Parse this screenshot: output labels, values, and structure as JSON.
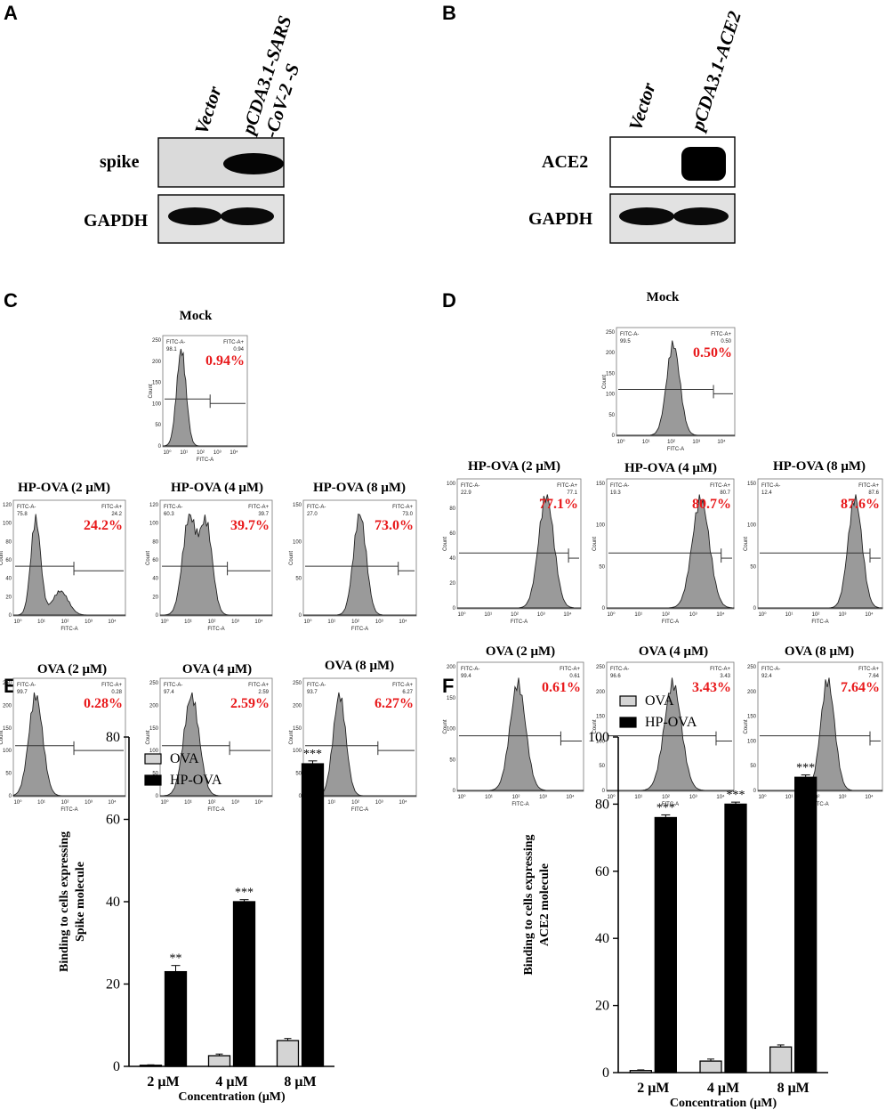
{
  "panel_labels": [
    "A",
    "B",
    "C",
    "D",
    "E",
    "F"
  ],
  "blot_A": {
    "lanes": [
      "Vector",
      "pCDA3.1-SARS",
      "-CoV-2 -S"
    ],
    "rows": [
      {
        "label": "spike",
        "band_intensity": [
          0,
          1
        ]
      },
      {
        "label": "GAPDH",
        "band_intensity": [
          1,
          1
        ]
      }
    ]
  },
  "blot_B": {
    "lanes": [
      "Vector",
      "pCDA3.1-ACE2"
    ],
    "rows": [
      {
        "label": "ACE2",
        "band_intensity": [
          0,
          1
        ]
      },
      {
        "label": "GAPDH",
        "band_intensity": [
          1,
          1
        ]
      }
    ]
  },
  "flow_C": [
    {
      "title": "Mock",
      "neg_label": "FITC-A-",
      "pos_label": "FITC-A+",
      "neg_value": "98.1",
      "pos_value": "0.94",
      "percent": "0.94%",
      "peak_log": 1.1,
      "ymax": 250,
      "yticks": [
        0,
        50,
        100,
        150,
        200,
        250
      ]
    },
    {
      "title": "HP-OVA (2 μM)",
      "neg_label": "FITC-A-",
      "pos_label": "FITC-A+",
      "neg_value": "75.8",
      "pos_value": "24.2",
      "percent": "24.2%",
      "peak_log": 1.0,
      "ymax": 120,
      "yticks": [
        0,
        20,
        40,
        60,
        80,
        100,
        120
      ]
    },
    {
      "title": "HP-OVA (4 μM)",
      "neg_label": "FITC-A-",
      "pos_label": "FITC-A+",
      "neg_value": "60.3",
      "pos_value": "39.7",
      "percent": "39.7%",
      "peak_log": 1.3,
      "ymax": 120,
      "yticks": [
        0,
        20,
        40,
        60,
        80,
        100,
        120
      ]
    },
    {
      "title": "HP-OVA (8 μM)",
      "neg_label": "FITC-A-",
      "pos_label": "FITC-A+",
      "neg_value": "27.0",
      "pos_value": "73.0",
      "percent": "73.0%",
      "peak_log": 2.5,
      "ymax": 150,
      "yticks": [
        0,
        50,
        100,
        150
      ]
    },
    {
      "title": "OVA (2 μM)",
      "neg_label": "FITC-A-",
      "pos_label": "FITC-A+",
      "neg_value": "99.7",
      "pos_value": "0.28",
      "percent": "0.28%",
      "peak_log": 1.0,
      "ymax": 250,
      "yticks": [
        0,
        50,
        100,
        150,
        200,
        250
      ]
    },
    {
      "title": "OVA (4 μM)",
      "neg_label": "FITC-A-",
      "pos_label": "FITC-A+",
      "neg_value": "97.4",
      "pos_value": "2.59",
      "percent": "2.59%",
      "peak_log": 1.4,
      "ymax": 250,
      "yticks": [
        0,
        50,
        100,
        150,
        200,
        250
      ]
    },
    {
      "title": "OVA (8 μM)",
      "neg_label": "FITC-A-",
      "pos_label": "FITC-A+",
      "neg_value": "93.7",
      "pos_value": "6.27",
      "percent": "6.27%",
      "peak_log": 1.6,
      "ymax": 250,
      "yticks": [
        0,
        50,
        100,
        150,
        200,
        250
      ]
    }
  ],
  "flow_D": [
    {
      "title": "Mock",
      "neg_label": "FITC-A-",
      "pos_label": "FITC-A+",
      "neg_value": "99.5",
      "pos_value": "0.50",
      "percent": "0.50%",
      "peak_log": 2.4,
      "ymax": 250,
      "yticks": [
        0,
        50,
        100,
        150,
        200,
        250
      ]
    },
    {
      "title": "HP-OVA (2 μM)",
      "neg_label": "FITC-A-",
      "pos_label": "FITC-A+",
      "neg_value": "22.9",
      "pos_value": "77.1",
      "percent": "77.1%",
      "peak_log": 3.6,
      "ymax": 100,
      "yticks": [
        0,
        20,
        40,
        60,
        80,
        100
      ]
    },
    {
      "title": "HP-OVA (4 μM)",
      "neg_label": "FITC-A-",
      "pos_label": "FITC-A+",
      "neg_value": "19.3",
      "pos_value": "80.7",
      "percent": "80.7%",
      "peak_log": 3.7,
      "ymax": 150,
      "yticks": [
        0,
        50,
        100,
        150
      ]
    },
    {
      "title": "HP-OVA (8 μM)",
      "neg_label": "FITC-A-",
      "pos_label": "FITC-A+",
      "neg_value": "12.4",
      "pos_value": "87.6",
      "percent": "87.6%",
      "peak_log": 3.9,
      "ymax": 150,
      "yticks": [
        0,
        50,
        100,
        150
      ]
    },
    {
      "title": "OVA (2 μM)",
      "neg_label": "FITC-A-",
      "pos_label": "FITC-A+",
      "neg_value": "99.4",
      "pos_value": "0.61",
      "percent": "0.61%",
      "peak_log": 2.4,
      "ymax": 200,
      "yticks": [
        0,
        50,
        100,
        150,
        200
      ]
    },
    {
      "title": "OVA (4 μM)",
      "neg_label": "FITC-A-",
      "pos_label": "FITC-A+",
      "neg_value": "96.6",
      "pos_value": "3.43",
      "percent": "3.43%",
      "peak_log": 2.6,
      "ymax": 250,
      "yticks": [
        0,
        50,
        100,
        150,
        200,
        250
      ]
    },
    {
      "title": "OVA (8 μM)",
      "neg_label": "FITC-A-",
      "pos_label": "FITC-A+",
      "neg_value": "92.4",
      "pos_value": "7.64",
      "percent": "7.64%",
      "peak_log": 2.8,
      "ymax": 250,
      "yticks": [
        0,
        50,
        100,
        150,
        200,
        250
      ]
    }
  ],
  "flow_axes": {
    "xlabel": "FITC-A",
    "ylabel": "Count",
    "xticks": [
      "10⁰",
      "10¹",
      "10²",
      "10³",
      "10⁴"
    ]
  },
  "colors": {
    "percent": "#e8191b",
    "histogram_fill": "#9a9a9a",
    "ova_bar": "#d4d4d4",
    "hpova_bar": "#000000"
  },
  "chart_data": [
    {
      "type": "bar",
      "panel": "E",
      "categories": [
        "2 μM",
        "4 μM",
        "8 μM"
      ],
      "series": [
        {
          "name": "OVA",
          "values": [
            0.28,
            2.59,
            6.27
          ],
          "errors": [
            0.1,
            0.4,
            0.5
          ]
        },
        {
          "name": "HP-OVA",
          "values": [
            23,
            40,
            73.5
          ],
          "errors": [
            1.5,
            0.5,
            0.7
          ]
        }
      ],
      "significance": [
        "**",
        "***",
        "***"
      ],
      "ylim": [
        0,
        80
      ],
      "yticks": [
        "0",
        "20",
        "40",
        "60",
        "80"
      ],
      "xlabel": "Concentration (μM)",
      "ylabel": [
        "Binding to cells expressing",
        "Spike molecule"
      ],
      "title": ""
    },
    {
      "type": "bar",
      "panel": "F",
      "categories": [
        "2 μM",
        "4 μM",
        "8 μM"
      ],
      "series": [
        {
          "name": "OVA",
          "values": [
            0.61,
            3.43,
            7.64
          ],
          "errors": [
            0.2,
            0.6,
            0.6
          ]
        },
        {
          "name": "HP-OVA",
          "values": [
            76,
            80,
            88
          ],
          "errors": [
            0.8,
            0.6,
            0.7
          ]
        }
      ],
      "significance": [
        "***",
        "***",
        "***"
      ],
      "ylim": [
        0,
        100
      ],
      "yticks": [
        "0",
        "20",
        "40",
        "60",
        "80",
        "100"
      ],
      "xlabel": "Concentration (μM)",
      "ylabel": [
        "Binding to cells expressing",
        "ACE2 molecule"
      ],
      "title": ""
    }
  ]
}
